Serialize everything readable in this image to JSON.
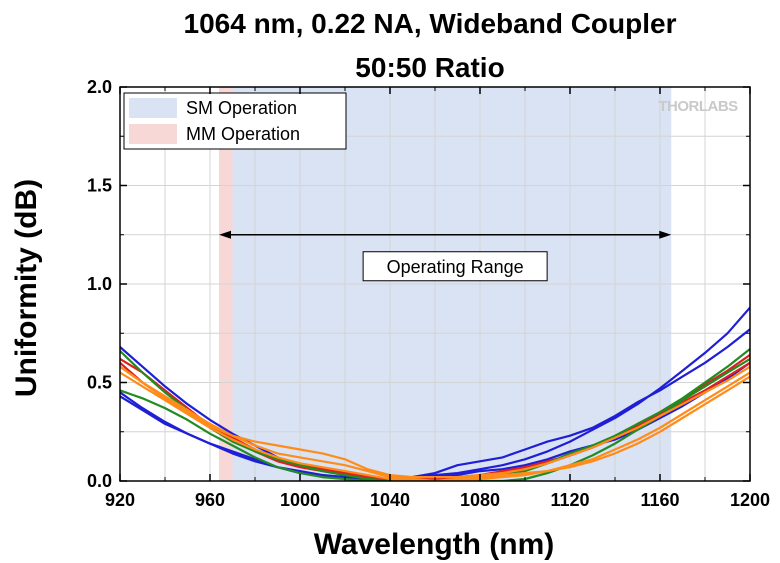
{
  "chart_data": {
    "type": "line",
    "title": "1064 nm, 0.22 NA, Wideband Coupler",
    "subtitle": "50:50 Ratio",
    "xlabel": "Wavelength (nm)",
    "ylabel": "Uniformity (dB)",
    "xlim": [
      920,
      1200
    ],
    "ylim": [
      0,
      2.0
    ],
    "xticks": [
      920,
      960,
      1000,
      1040,
      1080,
      1120,
      1160,
      1200
    ],
    "yticks": [
      0.0,
      0.5,
      1.0,
      1.5,
      2.0
    ],
    "xtick_labels": [
      "920",
      "960",
      "1000",
      "1040",
      "1080",
      "1120",
      "1160",
      "1200"
    ],
    "ytick_labels": [
      "0.0",
      "0.5",
      "1.0",
      "1.5",
      "2.0"
    ],
    "grid": true,
    "legend_position": "top-left",
    "shaded_regions": [
      {
        "label": "SM Operation",
        "x_start": 970,
        "x_end": 1165,
        "color": "#dae3f3"
      },
      {
        "label": "MM Operation",
        "x_start": 964,
        "x_end": 970,
        "color": "#f8d7d7"
      }
    ],
    "annotation": {
      "text": "Operating Range",
      "x_start": 964,
      "x_end": 1165,
      "y": 1.25
    },
    "logo": "THORLABS",
    "series": [
      {
        "color": "#1f1fd6",
        "x": [
          920,
          930,
          940,
          950,
          960,
          970,
          980,
          990,
          1000,
          1010,
          1020,
          1030,
          1040,
          1050,
          1060,
          1070,
          1080,
          1090,
          1100,
          1110,
          1120,
          1130,
          1140,
          1150,
          1160,
          1170,
          1180,
          1190,
          1200
        ],
        "y": [
          0.43,
          0.36,
          0.29,
          0.24,
          0.19,
          0.15,
          0.11,
          0.07,
          0.05,
          0.03,
          0.02,
          0.01,
          0.01,
          0.02,
          0.03,
          0.04,
          0.06,
          0.08,
          0.11,
          0.15,
          0.2,
          0.26,
          0.32,
          0.39,
          0.47,
          0.56,
          0.65,
          0.75,
          0.88
        ]
      },
      {
        "color": "#1f1fd6",
        "x": [
          920,
          930,
          940,
          950,
          960,
          970,
          980,
          990,
          1000,
          1010,
          1020,
          1030,
          1040,
          1050,
          1060,
          1070,
          1080,
          1090,
          1100,
          1110,
          1120,
          1130,
          1140,
          1150,
          1160,
          1170,
          1180,
          1190,
          1200
        ],
        "y": [
          0.45,
          0.37,
          0.3,
          0.24,
          0.19,
          0.14,
          0.1,
          0.07,
          0.04,
          0.03,
          0.02,
          0.01,
          0.01,
          0.02,
          0.04,
          0.08,
          0.1,
          0.12,
          0.16,
          0.2,
          0.23,
          0.27,
          0.33,
          0.4,
          0.46,
          0.53,
          0.6,
          0.68,
          0.77
        ]
      },
      {
        "color": "#1f1fd6",
        "x": [
          920,
          930,
          940,
          950,
          960,
          970,
          980,
          990,
          1000,
          1010,
          1020,
          1030,
          1040,
          1050,
          1060,
          1070,
          1080,
          1090,
          1100,
          1110,
          1120,
          1130,
          1140,
          1150,
          1160,
          1170,
          1180,
          1190,
          1200
        ],
        "y": [
          0.68,
          0.58,
          0.48,
          0.39,
          0.31,
          0.24,
          0.18,
          0.12,
          0.08,
          0.05,
          0.03,
          0.01,
          0.01,
          0.01,
          0.02,
          0.03,
          0.05,
          0.06,
          0.08,
          0.11,
          0.15,
          0.18,
          0.21,
          0.26,
          0.32,
          0.38,
          0.45,
          0.52,
          0.6
        ]
      },
      {
        "color": "#e02020",
        "x": [
          920,
          930,
          940,
          950,
          960,
          970,
          980,
          990,
          1000,
          1010,
          1020,
          1030,
          1040,
          1050,
          1060,
          1070,
          1080,
          1090,
          1100,
          1110,
          1120,
          1130,
          1140,
          1150,
          1160,
          1170,
          1180,
          1190,
          1200
        ],
        "y": [
          0.62,
          0.55,
          0.46,
          0.37,
          0.28,
          0.21,
          0.15,
          0.1,
          0.07,
          0.05,
          0.04,
          0.02,
          0.01,
          0.01,
          0.01,
          0.02,
          0.03,
          0.05,
          0.07,
          0.1,
          0.13,
          0.17,
          0.22,
          0.28,
          0.34,
          0.41,
          0.49,
          0.56,
          0.64
        ]
      },
      {
        "color": "#e02020",
        "x": [
          920,
          930,
          940,
          950,
          960,
          970,
          980,
          990,
          1000,
          1010,
          1020,
          1030,
          1040,
          1050,
          1060,
          1070,
          1080,
          1090,
          1100,
          1110,
          1120,
          1130,
          1140,
          1150,
          1160,
          1170,
          1180,
          1190,
          1200
        ],
        "y": [
          0.6,
          0.5,
          0.42,
          0.35,
          0.28,
          0.22,
          0.16,
          0.11,
          0.08,
          0.06,
          0.04,
          0.02,
          0.01,
          0.0,
          0.0,
          0.01,
          0.02,
          0.03,
          0.06,
          0.09,
          0.13,
          0.17,
          0.22,
          0.27,
          0.33,
          0.4,
          0.46,
          0.53,
          0.6
        ]
      },
      {
        "color": "#228b22",
        "x": [
          920,
          930,
          940,
          950,
          960,
          970,
          980,
          990,
          1000,
          1010,
          1020,
          1030,
          1040,
          1050,
          1060,
          1070,
          1080,
          1090,
          1100,
          1110,
          1120,
          1130,
          1140,
          1150,
          1160,
          1170,
          1180,
          1190,
          1200
        ],
        "y": [
          0.66,
          0.55,
          0.45,
          0.36,
          0.27,
          0.2,
          0.15,
          0.11,
          0.08,
          0.05,
          0.03,
          0.01,
          0.0,
          0.0,
          0.0,
          0.0,
          0.01,
          0.03,
          0.05,
          0.09,
          0.14,
          0.18,
          0.23,
          0.29,
          0.35,
          0.42,
          0.5,
          0.58,
          0.67
        ]
      },
      {
        "color": "#228b22",
        "x": [
          920,
          930,
          940,
          950,
          960,
          970,
          980,
          990,
          1000,
          1010,
          1020,
          1030,
          1040,
          1050,
          1060,
          1070,
          1080,
          1090,
          1100,
          1110,
          1120,
          1130,
          1140,
          1150,
          1160,
          1170,
          1180,
          1190,
          1200
        ],
        "y": [
          0.46,
          0.42,
          0.37,
          0.31,
          0.24,
          0.18,
          0.12,
          0.07,
          0.04,
          0.02,
          0.01,
          0.0,
          0.0,
          0.0,
          0.0,
          0.0,
          0.0,
          0.0,
          0.01,
          0.04,
          0.08,
          0.13,
          0.19,
          0.26,
          0.33,
          0.41,
          0.48,
          0.55,
          0.62
        ]
      },
      {
        "color": "#ff8c1a",
        "x": [
          920,
          930,
          940,
          950,
          960,
          970,
          980,
          990,
          1000,
          1010,
          1020,
          1030,
          1040,
          1050,
          1060,
          1070,
          1080,
          1090,
          1100,
          1110,
          1120,
          1130,
          1140,
          1150,
          1160,
          1170,
          1180,
          1190,
          1200
        ],
        "y": [
          0.58,
          0.5,
          0.43,
          0.36,
          0.29,
          0.23,
          0.2,
          0.18,
          0.16,
          0.14,
          0.11,
          0.06,
          0.03,
          0.02,
          0.02,
          0.02,
          0.03,
          0.04,
          0.06,
          0.09,
          0.13,
          0.17,
          0.22,
          0.27,
          0.33,
          0.39,
          0.45,
          0.51,
          0.58
        ]
      },
      {
        "color": "#ff8c1a",
        "x": [
          920,
          930,
          940,
          950,
          960,
          970,
          980,
          990,
          1000,
          1010,
          1020,
          1030,
          1040,
          1050,
          1060,
          1070,
          1080,
          1090,
          1100,
          1110,
          1120,
          1130,
          1140,
          1150,
          1160,
          1170,
          1180,
          1190,
          1200
        ],
        "y": [
          0.58,
          0.5,
          0.42,
          0.35,
          0.28,
          0.23,
          0.18,
          0.14,
          0.12,
          0.1,
          0.08,
          0.05,
          0.02,
          0.01,
          0.0,
          0.01,
          0.02,
          0.03,
          0.04,
          0.05,
          0.08,
          0.11,
          0.16,
          0.21,
          0.27,
          0.34,
          0.41,
          0.48,
          0.55
        ]
      },
      {
        "color": "#ff8c1a",
        "x": [
          920,
          930,
          940,
          950,
          960,
          970,
          980,
          990,
          1000,
          1010,
          1020,
          1030,
          1040,
          1050,
          1060,
          1070,
          1080,
          1090,
          1100,
          1110,
          1120,
          1130,
          1140,
          1150,
          1160,
          1170,
          1180,
          1190,
          1200
        ],
        "y": [
          0.55,
          0.48,
          0.41,
          0.34,
          0.27,
          0.21,
          0.16,
          0.12,
          0.09,
          0.07,
          0.05,
          0.03,
          0.01,
          0.0,
          0.0,
          0.0,
          0.01,
          0.02,
          0.03,
          0.05,
          0.07,
          0.1,
          0.14,
          0.19,
          0.25,
          0.32,
          0.39,
          0.46,
          0.53
        ]
      }
    ]
  }
}
